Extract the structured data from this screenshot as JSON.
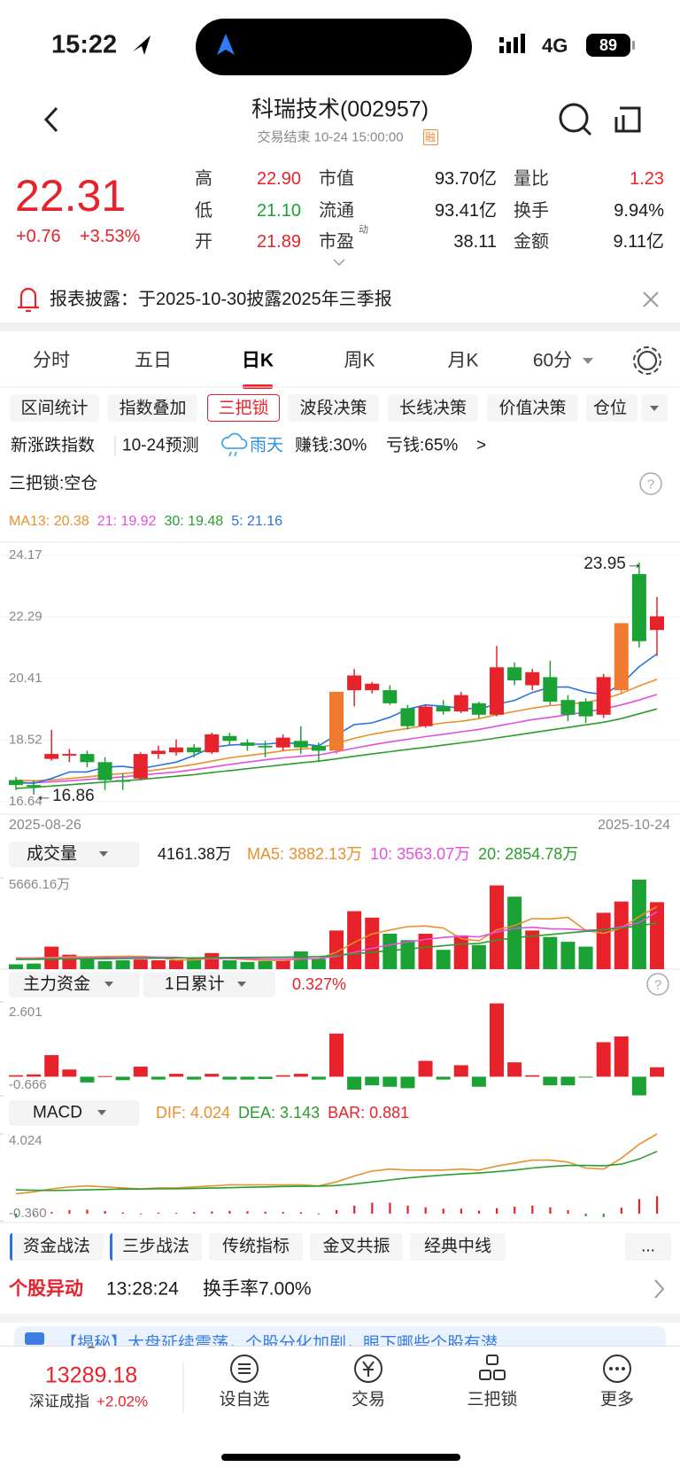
{
  "status_bar": {
    "time": "15:22",
    "network": "4G",
    "battery": "89"
  },
  "header": {
    "title": "科瑞技术(002957)",
    "subtitle": "交易结束 10-24 15:00:00",
    "badge": "融"
  },
  "quote": {
    "price": "22.31",
    "change": "+0.76",
    "change_pct": "+3.53%",
    "stats": [
      [
        "高",
        "22.90"
      ],
      [
        "低",
        "21.10"
      ],
      [
        "开",
        "21.89"
      ],
      [
        "市值",
        "93.70亿"
      ],
      [
        "流通",
        "93.41亿"
      ],
      [
        "市盈",
        "38.11"
      ],
      [
        "量比",
        "1.23"
      ],
      [
        "换手",
        "9.94%"
      ],
      [
        "金额",
        "9.11亿"
      ]
    ],
    "pe_sup": "动"
  },
  "notice": {
    "text": "报表披露：于2025-10-30披露2025年三季报"
  },
  "period_tabs": [
    "分时",
    "五日",
    "日K",
    "周K",
    "月K",
    "60分"
  ],
  "tool_buttons": [
    "区间统计",
    "指数叠加",
    "三把锁",
    "波段决策",
    "长线决策",
    "价值决策",
    "仓位"
  ],
  "index_row": {
    "name": "新涨跌指数",
    "forecast": "10-24预测",
    "weather": "雨天",
    "win": "赚钱:30%",
    "lose": "亏钱:65%",
    "more": ">"
  },
  "lock_status": "三把锁:空仓",
  "help": "?",
  "kline": {
    "type": "candlestick",
    "open": [
      17.3,
      17.15,
      17.95,
      18.05,
      18.1,
      17.85,
      17.3,
      17.35,
      18.1,
      18.15,
      18.3,
      18.15,
      18.65,
      18.45,
      18.35,
      18.3,
      18.5,
      18.35,
      18.2,
      20.05,
      20.05,
      20.05,
      19.5,
      18.95,
      19.55,
      19.4,
      19.65,
      19.3,
      20.75,
      20.2,
      20.45,
      19.75,
      19.7,
      19.3,
      20.05,
      23.6,
      21.89
    ],
    "high": [
      17.4,
      17.3,
      18.84,
      18.25,
      18.2,
      18.0,
      17.5,
      18.15,
      18.35,
      18.55,
      18.4,
      18.75,
      18.75,
      18.55,
      18.5,
      18.7,
      18.95,
      18.45,
      20.0,
      20.7,
      20.3,
      20.2,
      19.6,
      19.6,
      19.75,
      20.0,
      19.7,
      21.4,
      20.9,
      20.7,
      20.95,
      19.9,
      19.8,
      20.55,
      22.1,
      23.95,
      22.9
    ],
    "low": [
      17.0,
      16.86,
      17.9,
      17.85,
      17.7,
      17.0,
      17.0,
      17.3,
      17.95,
      18.05,
      18.0,
      18.1,
      18.35,
      18.2,
      18.0,
      18.2,
      18.1,
      17.85,
      18.1,
      19.55,
      19.95,
      19.6,
      18.85,
      18.9,
      19.3,
      19.35,
      19.2,
      19.25,
      20.2,
      20.05,
      19.6,
      19.1,
      19.05,
      19.2,
      19.95,
      21.35,
      21.1
    ],
    "close": [
      17.15,
      17.1,
      18.1,
      18.1,
      17.85,
      17.3,
      17.25,
      18.1,
      18.2,
      18.3,
      18.15,
      18.7,
      18.5,
      18.35,
      18.3,
      18.6,
      18.3,
      18.2,
      20.0,
      20.5,
      20.25,
      19.65,
      18.95,
      19.55,
      19.4,
      19.9,
      19.3,
      20.75,
      20.35,
      20.6,
      19.7,
      19.3,
      19.25,
      20.45,
      22.1,
      21.55,
      22.31
    ],
    "signal_candles": [
      18,
      34
    ],
    "signal_color": "#f07a30",
    "ma_lines": [
      {
        "label": "MA13: 20.38",
        "color": "#e8912c",
        "values": [
          17.3,
          17.28,
          17.3,
          17.35,
          17.4,
          17.45,
          17.5,
          17.55,
          17.62,
          17.7,
          17.78,
          17.88,
          17.98,
          18.05,
          18.12,
          18.2,
          18.25,
          18.28,
          18.42,
          18.58,
          18.7,
          18.8,
          18.88,
          18.97,
          19.05,
          19.1,
          19.18,
          19.3,
          19.4,
          19.5,
          19.58,
          19.62,
          19.68,
          19.78,
          19.95,
          20.18,
          20.38
        ]
      },
      {
        "label": "21: 19.92",
        "color": "#e34fe0",
        "values": [
          17.2,
          17.22,
          17.25,
          17.28,
          17.32,
          17.36,
          17.4,
          17.45,
          17.5,
          17.55,
          17.62,
          17.7,
          17.78,
          17.85,
          17.92,
          17.98,
          18.03,
          18.07,
          18.17,
          18.28,
          18.38,
          18.47,
          18.55,
          18.63,
          18.7,
          18.78,
          18.85,
          18.95,
          19.05,
          19.15,
          19.22,
          19.3,
          19.38,
          19.48,
          19.6,
          19.75,
          19.92
        ]
      },
      {
        "label": "30: 19.48",
        "color": "#2a9d2e",
        "values": [
          17.05,
          17.08,
          17.12,
          17.16,
          17.2,
          17.24,
          17.28,
          17.32,
          17.37,
          17.42,
          17.47,
          17.53,
          17.59,
          17.65,
          17.71,
          17.77,
          17.83,
          17.88,
          17.95,
          18.03,
          18.1,
          18.17,
          18.24,
          18.3,
          18.37,
          18.44,
          18.51,
          18.59,
          18.67,
          18.75,
          18.83,
          18.91,
          18.99,
          19.07,
          19.18,
          19.33,
          19.48
        ]
      },
      {
        "label": "5: 21.16",
        "color": "#2a72e0",
        "values": [
          17.25,
          17.2,
          17.35,
          17.55,
          17.55,
          17.7,
          17.72,
          17.65,
          17.75,
          17.85,
          18.05,
          18.3,
          18.37,
          18.4,
          18.4,
          18.45,
          18.41,
          18.35,
          18.68,
          19.0,
          19.05,
          19.22,
          19.47,
          19.6,
          19.56,
          19.5,
          19.48,
          19.62,
          19.74,
          19.98,
          20.14,
          20.15,
          19.99,
          19.92,
          20.24,
          20.77,
          21.16
        ]
      }
    ],
    "ylim": [
      16.64,
      24.17
    ],
    "yticks": [
      24.17,
      22.29,
      20.41,
      18.52,
      16.64
    ],
    "x_labels": [
      "2025-08-26",
      "2025-10-24"
    ],
    "high_label": "23.95→",
    "low_label": "←16.86"
  },
  "volume": {
    "type": "bar",
    "selector": "成交量",
    "current": "4161.38万",
    "values": [
      300,
      350,
      1400,
      900,
      650,
      500,
      550,
      600,
      550,
      550,
      650,
      1000,
      550,
      450,
      500,
      550,
      1100,
      650,
      2400,
      3600,
      3200,
      2200,
      1800,
      2200,
      1200,
      2100,
      1500,
      5200,
      4500,
      2400,
      2000,
      1700,
      1400,
      3500,
      4200,
      5560,
      4161.38
    ],
    "ma_lines": [
      {
        "label": "MA5: 3882.13万",
        "color": "#e8912c",
        "values": [
          700,
          700,
          720,
          760,
          760,
          780,
          800,
          800,
          730,
          560,
          580,
          670,
          660,
          600,
          540,
          540,
          630,
          650,
          1050,
          1660,
          2190,
          2430,
          2640,
          2680,
          2560,
          1900,
          1760,
          2440,
          2700,
          3140,
          3120,
          3220,
          2400,
          2220,
          2560,
          3270,
          3882.13
        ]
      },
      {
        "label": "10: 3563.07万",
        "color": "#e34fe0",
        "values": [
          650,
          660,
          670,
          690,
          700,
          710,
          720,
          730,
          740,
          745,
          660,
          660,
          660,
          650,
          640,
          640,
          650,
          660,
          800,
          1050,
          1300,
          1500,
          1680,
          1850,
          1970,
          2050,
          2000,
          2300,
          2530,
          2600,
          2510,
          2490,
          2420,
          2440,
          2640,
          2890,
          3563.07
        ]
      },
      {
        "label": "20: 2854.78万",
        "color": "#2a9d2e",
        "values": [
          600,
          610,
          620,
          630,
          640,
          650,
          660,
          670,
          680,
          690,
          700,
          710,
          720,
          730,
          740,
          750,
          760,
          780,
          850,
          950,
          1050,
          1150,
          1250,
          1350,
          1450,
          1550,
          1600,
          1800,
          1950,
          2050,
          2150,
          2250,
          2350,
          2450,
          2550,
          2700,
          2854.78
        ]
      }
    ],
    "ylim": [
      0,
      5666.16
    ],
    "yticks": [
      {
        "value": 5666.16,
        "label": "5666.16万"
      }
    ]
  },
  "capital": {
    "type": "bar",
    "selector": "主力资金",
    "period": "1日累计",
    "current": "0.327%",
    "values": [
      0.05,
      0.08,
      0.75,
      0.25,
      -0.2,
      0.02,
      -0.12,
      0.35,
      -0.1,
      0.1,
      -0.1,
      0.1,
      -0.1,
      -0.1,
      -0.08,
      0.05,
      0.1,
      -0.1,
      1.5,
      -0.45,
      -0.3,
      -0.35,
      -0.4,
      0.55,
      -0.1,
      0.4,
      -0.35,
      2.55,
      0.5,
      0.05,
      -0.3,
      -0.3,
      -0.02,
      1.2,
      1.4,
      -0.65,
      0.327
    ],
    "ylim": [
      -0.666,
      2.601
    ],
    "yticks": [
      2.601,
      -0.666
    ]
  },
  "macd": {
    "type": "macd",
    "selector": "MACD",
    "lines": [
      {
        "label": "DIF: 4.024",
        "color": "#e8912c",
        "values": [
          1.0,
          1.1,
          1.25,
          1.35,
          1.4,
          1.35,
          1.3,
          1.25,
          1.3,
          1.3,
          1.35,
          1.4,
          1.45,
          1.45,
          1.45,
          1.45,
          1.45,
          1.4,
          1.6,
          1.9,
          2.15,
          2.25,
          2.2,
          2.2,
          2.2,
          2.25,
          2.2,
          2.4,
          2.55,
          2.7,
          2.7,
          2.6,
          2.3,
          2.25,
          2.8,
          3.5,
          4.024
        ]
      },
      {
        "label": "DEA: 3.143",
        "color": "#2a9d2e",
        "values": [
          1.2,
          1.18,
          1.17,
          1.18,
          1.2,
          1.22,
          1.24,
          1.24,
          1.25,
          1.26,
          1.27,
          1.29,
          1.31,
          1.33,
          1.35,
          1.37,
          1.38,
          1.39,
          1.42,
          1.5,
          1.6,
          1.7,
          1.8,
          1.88,
          1.95,
          2.0,
          2.05,
          2.12,
          2.2,
          2.3,
          2.38,
          2.43,
          2.43,
          2.42,
          2.5,
          2.76,
          3.143
        ]
      }
    ],
    "bar_label": "BAR: 0.881",
    "bar": [
      -0.2,
      -0.08,
      0.08,
      0.17,
      0.2,
      0.13,
      0.06,
      0.01,
      0.05,
      0.04,
      0.08,
      0.11,
      0.14,
      0.12,
      0.1,
      0.08,
      0.07,
      0.01,
      0.18,
      0.4,
      0.55,
      0.55,
      0.4,
      0.32,
      0.25,
      0.25,
      0.15,
      0.28,
      0.35,
      0.4,
      0.32,
      0.17,
      -0.13,
      -0.17,
      0.3,
      0.74,
      0.881
    ],
    "ylim": [
      -0.36,
      4.024
    ],
    "yticks": [
      4.024,
      {
        "value": -0.36,
        "label": "-0.360"
      }
    ]
  },
  "strategy_tabs": [
    "资金战法",
    "三步战法",
    "传统指标",
    "金叉共振",
    "经典中线",
    "..."
  ],
  "alert": {
    "title": "个股异动",
    "time": "13:28:24",
    "text": "换手率7.00%"
  },
  "banner": "【揭秘】大盘延续震荡，个股分化加剧，眼下哪些个股有潜",
  "bottom_nav": {
    "index_value": "13289.18",
    "index_name": "深证成指",
    "index_pct": "+2.02%",
    "items": [
      "设自选",
      "交易",
      "三把锁",
      "更多"
    ]
  }
}
